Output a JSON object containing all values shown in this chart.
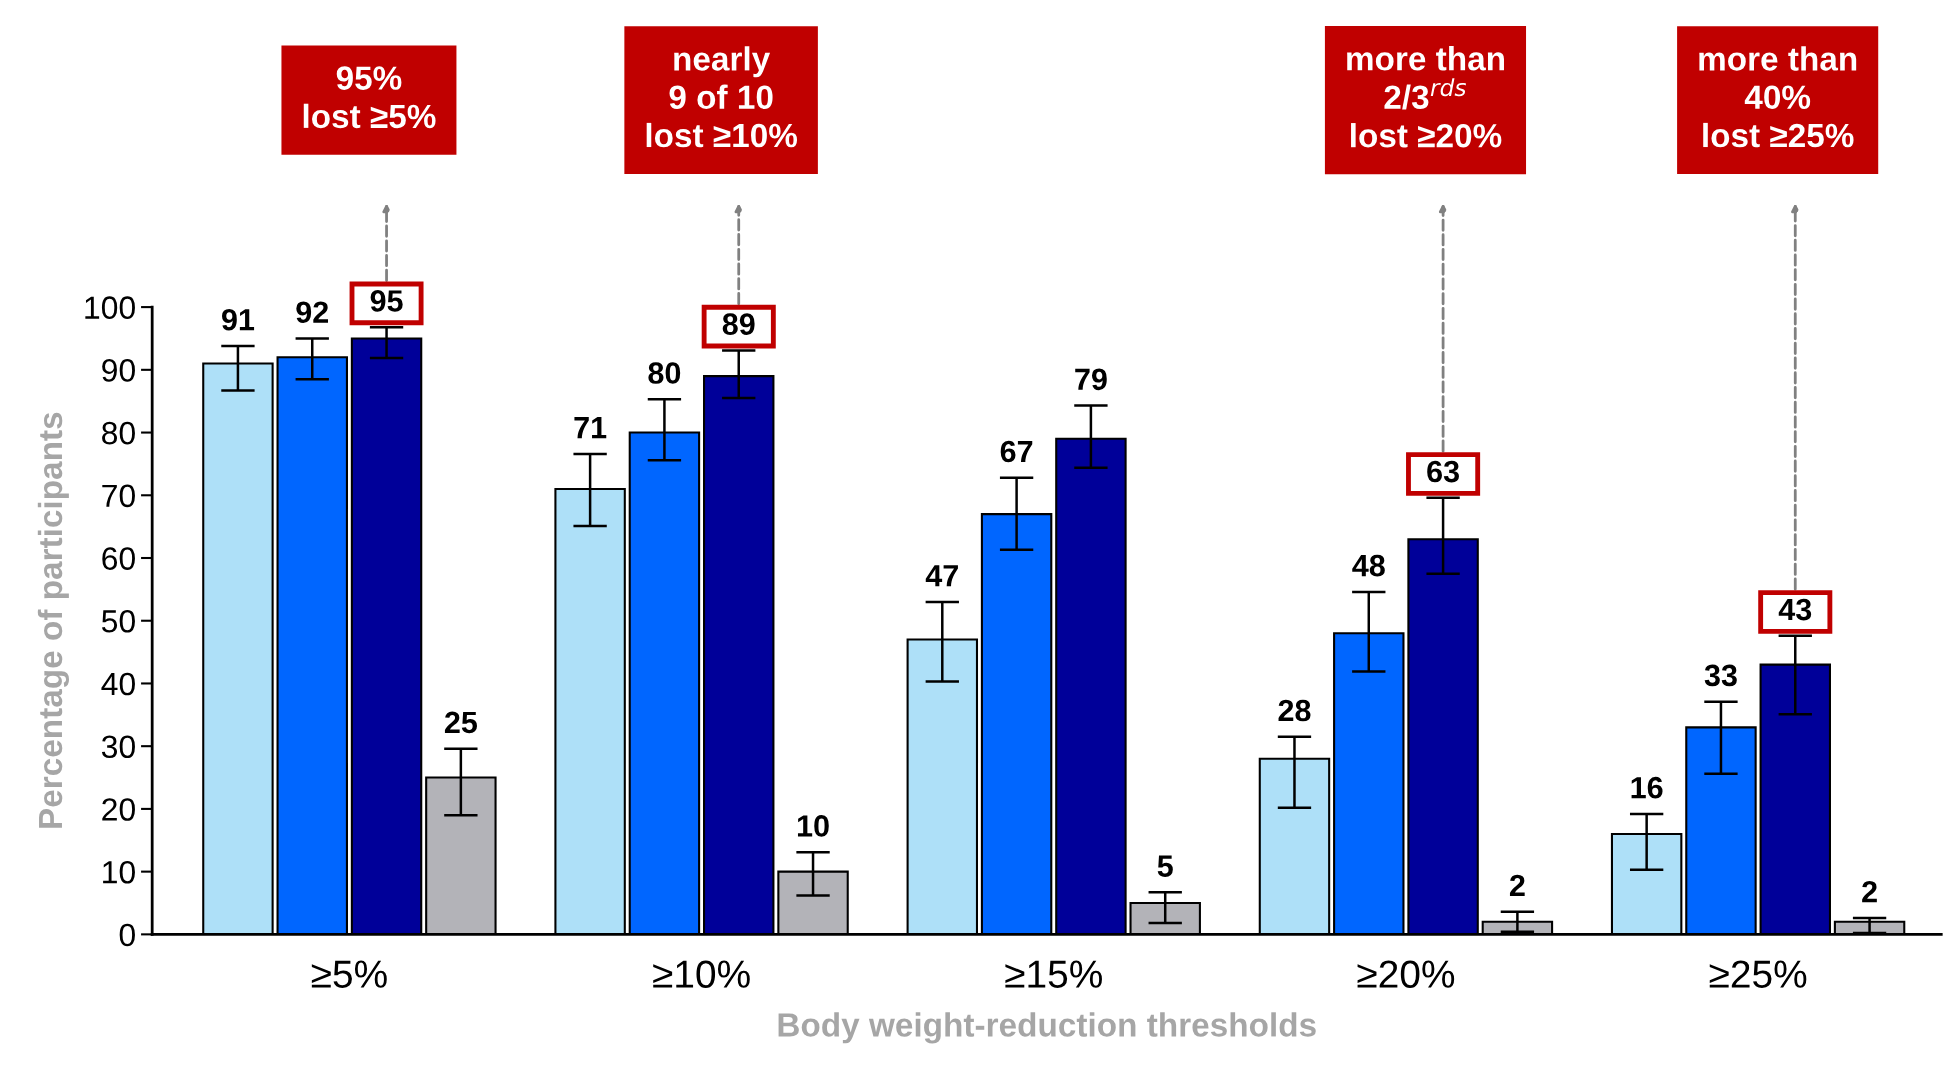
{
  "chart_data": {
    "type": "bar",
    "xlabel": "Body weight-reduction thresholds",
    "ylabel": "Percentage of participants",
    "categories": [
      "≥5%",
      "≥10%",
      "≥15%",
      "≥20%",
      "≥25%"
    ],
    "series": [
      {
        "color": "#aee0f8",
        "values": [
          91,
          71,
          47,
          28,
          16
        ],
        "errors": [
          [
            86.7,
            93.8
          ],
          [
            65.1,
            76.6
          ],
          [
            40.3,
            53.0
          ],
          [
            20.2,
            31.5
          ],
          [
            10.3,
            19.2
          ]
        ]
      },
      {
        "color": "#0066ff",
        "values": [
          92,
          80,
          67,
          48,
          33
        ],
        "errors": [
          [
            88.5,
            95.0
          ],
          [
            75.6,
            85.3
          ],
          [
            61.3,
            72.8
          ],
          [
            41.9,
            54.6
          ],
          [
            25.6,
            37.1
          ]
        ]
      },
      {
        "color": "#000099",
        "values": [
          95,
          89,
          79,
          63,
          43
        ],
        "errors": [
          [
            91.9,
            96.8
          ],
          [
            85.5,
            93.1
          ],
          [
            74.4,
            84.3
          ],
          [
            57.5,
            69.6
          ],
          [
            35.1,
            47.6
          ]
        ]
      },
      {
        "color": "#b3b3b8",
        "values": [
          25,
          10,
          5,
          2,
          2
        ],
        "errors": [
          [
            19.0,
            29.6
          ],
          [
            6.2,
            13.1
          ],
          [
            1.8,
            6.7
          ],
          [
            0.4,
            3.6
          ],
          [
            0.2,
            2.6
          ]
        ]
      }
    ],
    "data_labels": true,
    "ylim": [
      0,
      100
    ],
    "yticks": [
      0,
      10,
      20,
      30,
      40,
      50,
      60,
      70,
      80,
      90,
      100
    ],
    "grid": false,
    "legend": false,
    "annotations": [
      "95%\nlost ≥5%",
      "nearly\n9 of 10\nlost ≥10%",
      "more than\n2/3$^{rds}$\nlost ≥20%",
      "more than\n40%\nlost ≥25%"
    ]
  }
}
